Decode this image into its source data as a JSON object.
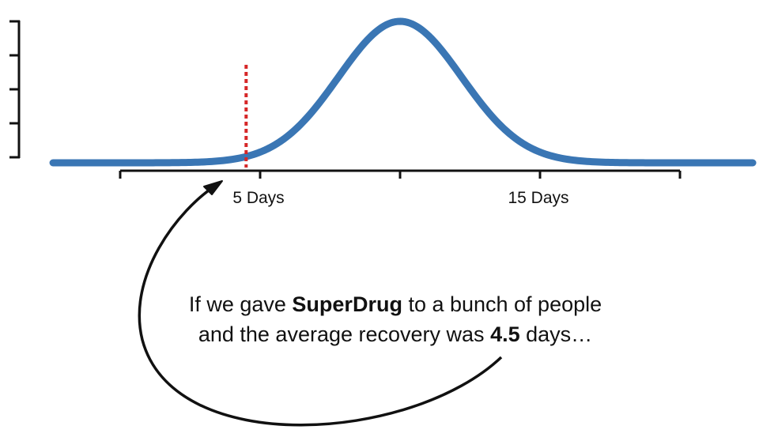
{
  "chart_data": {
    "type": "line",
    "title": "",
    "xlabel": "",
    "ylabel": "",
    "x_range": [
      -2.4,
      22.6
    ],
    "xlim": [
      0,
      20
    ],
    "ticks": [
      0,
      5,
      10,
      15,
      20
    ],
    "tick_labels": [
      {
        "x": 5,
        "label": "5 Days"
      },
      {
        "x": 15,
        "label": "15 Days"
      }
    ],
    "y_ticks": 5,
    "series": [
      {
        "distribution": "normal",
        "mean": 10,
        "sd": 2.2,
        "color": "#3a76b4"
      }
    ],
    "reference_line": {
      "x": 4.5,
      "style": "dotted",
      "color": "#d62728"
    }
  },
  "annotation": {
    "line1_pre": "If we gave ",
    "line1_bold": "SuperDrug",
    "line1_post": " to a bunch of people",
    "line2_pre": "and the average recovery was ",
    "line2_bold": "4.5",
    "line2_post": " days…"
  }
}
